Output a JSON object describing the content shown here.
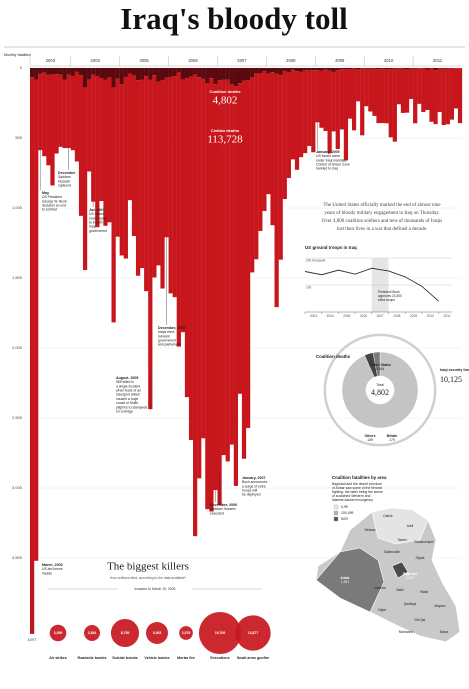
{
  "title": "Iraq's bloody toll",
  "chart_data": [
    {
      "type": "bar",
      "y_label": "Monthly fatalities",
      "years": [
        "2003",
        "2004",
        "2005",
        "2006",
        "2007",
        "2008",
        "2009",
        "2010",
        "2011"
      ],
      "categories": [
        null,
        null,
        null,
        null,
        null,
        null,
        null,
        null,
        null,
        null,
        null,
        null,
        null,
        null,
        null,
        null,
        null,
        null,
        null,
        null,
        null,
        null,
        null,
        null,
        null,
        null,
        null,
        null,
        null,
        null,
        null,
        null,
        null,
        null,
        null,
        null,
        null,
        null,
        null,
        null,
        null,
        null,
        null,
        null,
        null,
        null,
        null,
        null,
        null,
        null,
        null,
        null,
        null,
        null,
        null,
        null,
        null,
        null,
        null,
        null,
        null,
        null,
        null,
        null,
        null,
        null,
        null,
        null,
        null,
        null,
        null,
        null,
        null,
        null,
        null,
        null,
        null,
        null,
        null,
        null,
        null,
        null,
        null,
        null,
        null,
        null,
        null,
        null,
        null,
        null,
        null,
        null,
        null,
        null,
        null,
        null,
        null,
        null,
        null,
        null,
        null,
        null,
        null,
        null,
        null,
        null
      ],
      "ylim": [
        0,
        4000
      ],
      "yticks": [
        0,
        500,
        {
          "value": 1000,
          "label": "1,000"
        },
        {
          "value": 1500,
          "label": "1,500"
        },
        {
          "value": 2000,
          "label": "2,000"
        },
        {
          "value": 2500,
          "label": "2,500"
        },
        {
          "value": 3000,
          "label": "3,000"
        },
        {
          "value": 3500,
          "label": "3,500"
        }
      ],
      "grid": true,
      "series": [
        {
          "name": "Coalition deaths",
          "color": "#5a0a0e",
          "values": [
            65,
            82,
            42,
            33,
            49,
            47,
            45,
            47,
            85,
            48,
            57,
            25,
            52,
            140,
            84,
            49,
            57,
            72,
            85,
            69,
            141,
            76,
            117,
            64,
            39,
            55,
            88,
            82,
            58,
            85,
            52,
            99,
            88,
            68,
            64,
            58,
            33,
            82,
            72,
            63,
            46,
            66,
            78,
            110,
            73,
            115,
            86,
            85,
            82,
            117,
            131,
            108,
            89,
            88,
            69,
            40,
            40,
            24,
            40,
            30,
            39,
            52,
            21,
            31,
            13,
            23,
            25,
            14,
            17,
            16,
            16,
            18,
            12,
            19,
            25,
            15,
            8,
            7,
            10,
            4,
            12,
            3,
            6,
            6,
            6,
            9,
            6,
            10,
            7,
            6,
            5,
            6,
            12,
            3,
            6,
            2,
            3,
            11,
            3,
            15,
            6,
            6,
            5,
            3,
            1,
            2
          ]
        },
        {
          "name": "Civilian deaths",
          "color": "#c8161d",
          "values": [
            3977,
            3438,
            545,
            597,
            646,
            792,
            566,
            516,
            487,
            524,
            530,
            643,
            1004,
            1303,
            655,
            906,
            1080,
            878,
            1042,
            1033,
            1676,
            1129,
            1222,
            1297,
            905,
            1145,
            1396,
            1347,
            1536,
            2352,
            1444,
            1311,
            1487,
            1141,
            1546,
            1579,
            1957,
            1805,
            2279,
            2594,
            3298,
            2865,
            2567,
            3041,
            3095,
            2900,
            3035,
            2680,
            2728,
            2573,
            2854,
            2219,
            2702,
            2483,
            1391,
            1326,
            1124,
            997,
            861,
            1093,
            1669,
            1317,
            915,
            755,
            640,
            704,
            612,
            594,
            540,
            586,
            372,
            409,
            438,
            590,
            428,
            564,
            431,
            653,
            352,
            441,
            226,
            478,
            267,
            305,
            336,
            385,
            387,
            385,
            488,
            520,
            254,
            315,
            307,
            218,
            389,
            254,
            311,
            289,
            381,
            386,
            308,
            401,
            397,
            366,
            288,
            392
          ],
          "value_labels": [
            "3,977",
            null,
            null,
            null,
            null,
            null,
            null,
            null,
            null,
            null,
            null,
            null,
            null,
            null,
            null,
            null,
            null,
            null,
            null,
            null,
            null,
            null,
            null,
            null,
            null,
            null,
            null,
            null,
            null,
            null,
            null,
            null,
            null,
            null,
            null,
            null,
            null,
            null,
            null,
            null,
            null,
            null,
            null,
            null,
            null,
            null,
            null,
            null,
            null,
            null,
            null,
            null,
            null,
            null,
            null,
            null,
            null,
            null,
            null,
            null,
            null,
            null,
            null,
            null,
            null,
            null,
            null,
            null,
            null,
            null,
            null,
            null,
            null,
            null,
            null,
            null,
            null,
            null,
            null,
            null,
            null,
            null,
            null,
            null,
            null,
            null,
            null,
            null,
            null,
            null,
            null,
            null,
            null,
            null,
            null,
            null,
            null,
            null,
            null,
            null,
            null,
            null,
            null,
            null,
            null,
            null
          ]
        }
      ],
      "totals": [
        {
          "name": "Coalition deaths",
          "label": "4,802"
        },
        {
          "name": "Civilian deaths",
          "label": "113,728"
        }
      ],
      "annotations": [
        {
          "title": "March, 2003",
          "lines": [
            "US-led forces",
            "invade"
          ]
        },
        {
          "title": "May",
          "lines": [
            "US President",
            "George W. Bush",
            "declares an end",
            "to combat"
          ]
        },
        {
          "title": "December",
          "lines": [
            "Saddam",
            "Hussein",
            "captured"
          ]
        },
        {
          "title": "Jun 2004",
          "lines": [
            "US hands",
            "sovereignty",
            "to interim",
            "Iraqi",
            "government"
          ]
        },
        {
          "title": "August, 2005",
          "lines": [
            "965 killed in",
            "a single incident",
            "when fears of an",
            "insurgent attack",
            "caused a huge",
            "crowd of Shiite",
            "pilgrims to stampede",
            "on a bridge"
          ]
        },
        {
          "title": "December, 2005",
          "lines": [
            "Iraqis elect",
            "full-term",
            "government",
            "and parliament"
          ]
        },
        {
          "title": "January, 2007",
          "lines": [
            "Bush announces",
            "a surge of extra",
            "troops will",
            "be deployed"
          ]
        },
        {
          "title": "December, 2006",
          "lines": [
            "Saddam Hussein",
            "executed"
          ]
        },
        {
          "title": "January, 2009",
          "lines": [
            "US forces come",
            "under Iraqi mandate.",
            "Control of Green Zone",
            "handed to Iraq"
          ]
        }
      ]
    },
    {
      "type": "line",
      "title": "US ground troops in Iraq",
      "x": [
        2003,
        2004,
        2005,
        2006,
        2007,
        2008,
        2009,
        2010,
        2011
      ],
      "values": [
        150,
        138,
        155,
        140,
        162,
        152,
        130,
        95,
        40
      ],
      "color": "#333333",
      "xlim": [
        2003,
        2011.8
      ],
      "xticks": [
        2003,
        2004,
        2005,
        2006,
        2007,
        2008,
        2009,
        2010,
        2011
      ],
      "ylim": [
        0,
        200
      ],
      "yticks": [
        {
          "value": 100,
          "label": "100"
        },
        {
          "value": 200,
          "label": "200 thousand"
        }
      ],
      "annotation": [
        "President Bush",
        "approves 21,500",
        "extra troops"
      ]
    },
    {
      "type": "pie",
      "title": "Coalition deaths",
      "categories": [
        "United States",
        "Britain",
        "Others"
      ],
      "values": [
        4484,
        179,
        139
      ],
      "value_labels": [
        "4,484",
        "179",
        "139"
      ],
      "colors": [
        "#c4c4c4",
        "#444444",
        "#7a7a7a"
      ],
      "total_title": "Total",
      "total": 4802,
      "total_label": "4,802",
      "outer": {
        "name": "Iraqi security forces",
        "value": 10125,
        "label": "10,125"
      }
    },
    {
      "type": "bubble",
      "title": "The biggest killers",
      "subtitle": "How civilians died, according to the data available*",
      "period": "Invasion to March 19, 2009",
      "categories": [
        "Air strikes",
        "Roadside bombs",
        "Suicide bombs",
        "Vehicle bombs",
        "Mortar fire",
        "Executions",
        "Small arms gunfire"
      ],
      "values": [
        3059,
        2854,
        8759,
        5363,
        2078,
        19706,
        13877
      ],
      "value_labels": [
        "3,059",
        "2,854",
        "8,759",
        "5,363",
        "2,078",
        "19,706",
        "13,877"
      ],
      "color": "#c8161d"
    }
  ],
  "text": {
    "lines": [
      "The United States officially marked the end of almost nine",
      "years of bloody military engagement in Iraq on Thursday.",
      "Over 4,800 coalition soldiers and tens of thousands of Iraqis",
      "lost their lives in a war that defined a decade."
    ]
  },
  "map": {
    "title": "Coalition fatalities by area",
    "lines": [
      "Baghdad and the desert province",
      "of Anbar saw some of the fiercest",
      "fighting, the latter being the scene",
      "of sustained Western and",
      "Islamist-backed insurgency"
    ],
    "legend": [
      "0-99",
      "100-499",
      "500+"
    ],
    "areas": [
      {
        "name": "Ninawa"
      },
      {
        "name": "Dahuk"
      },
      {
        "name": "Arbil"
      },
      {
        "name": "Tamim"
      },
      {
        "name": "Sulaimaniyah"
      },
      {
        "name": "Salahuddin"
      },
      {
        "name": "Diyala"
      },
      {
        "name": "Anbar",
        "label": "1,331"
      },
      {
        "name": "Baghdad",
        "label": "1,425"
      },
      {
        "name": "Babil"
      },
      {
        "name": "Wasit"
      },
      {
        "name": "Karbala"
      },
      {
        "name": "Najaf"
      },
      {
        "name": "Qadisiya"
      },
      {
        "name": "Maysan"
      },
      {
        "name": "Dhi Qar"
      },
      {
        "name": "Muthanna"
      },
      {
        "name": "Basra"
      }
    ]
  }
}
